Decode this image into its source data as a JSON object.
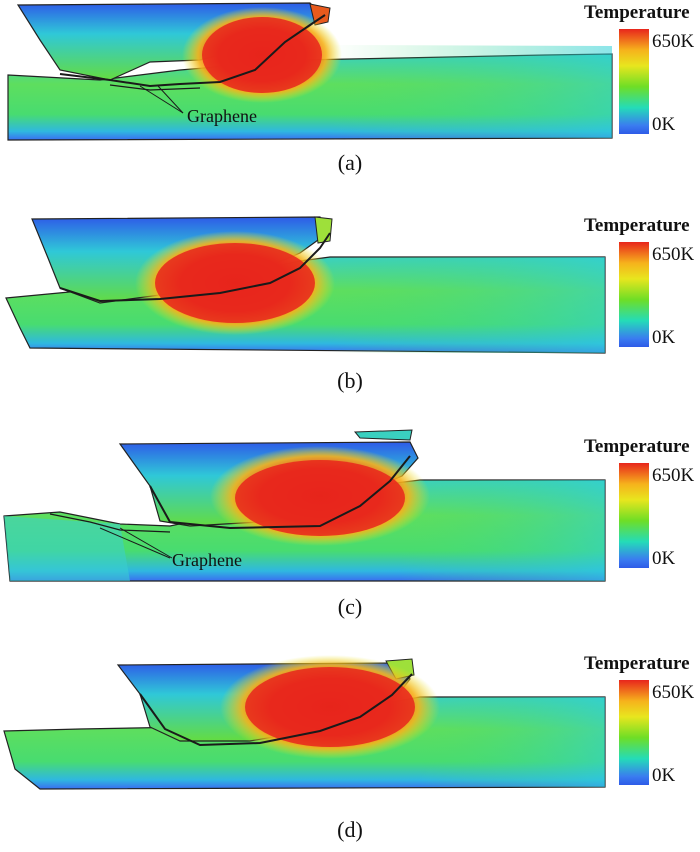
{
  "legend": {
    "title": "Temperature",
    "max_label": "650K",
    "min_label": "0K"
  },
  "annotation_label": "Graphene",
  "panels": [
    {
      "caption": "(a)"
    },
    {
      "caption": "(b)"
    },
    {
      "caption": "(c)"
    },
    {
      "caption": "(d)"
    }
  ],
  "colors": {
    "hot": "#e8261c",
    "warm": "#f6b21c",
    "mid": "#6ede26",
    "cool": "#24dcb8",
    "cold": "#2e5be8"
  }
}
